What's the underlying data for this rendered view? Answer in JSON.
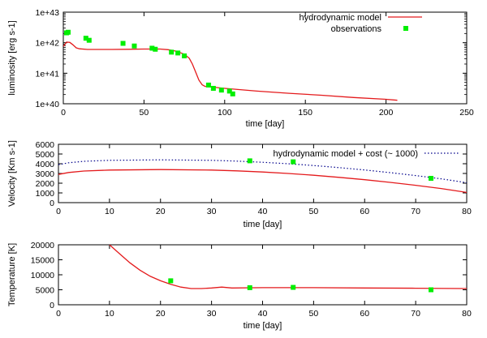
{
  "colors": {
    "model": "#e41a1c",
    "observations": "#00ee00",
    "dotted": "#00008b"
  },
  "chart_data": [
    {
      "type": "line",
      "ylog": true,
      "xlabel": "time [day]",
      "ylabel": "luminosity [erg s-1]",
      "xlim": [
        0,
        250
      ],
      "ylim": [
        1e+40,
        1e+43
      ],
      "xticks": [
        0,
        50,
        100,
        150,
        200,
        250
      ],
      "yticks": [
        1e+40,
        1e+41,
        1e+42,
        1e+43
      ],
      "ytick_labels": [
        "1e+40",
        "1e+41",
        "1e+42",
        "1e+43"
      ],
      "legend": [
        "hydrodynamic model",
        "observations"
      ],
      "series": [
        {
          "name": "hydrodynamic model",
          "style": "line",
          "x": [
            0,
            2,
            4,
            6,
            8,
            10,
            15,
            20,
            30,
            40,
            50,
            60,
            65,
            70,
            75,
            78,
            80,
            82,
            84,
            86,
            87,
            88,
            90,
            95,
            100,
            120,
            140,
            160,
            180,
            200,
            207
          ],
          "y": [
            7.5e+41,
            1.05e+42,
            1.02e+42,
            8.5e+41,
            6.8e+41,
            6.3e+41,
            6e+41,
            6e+41,
            6e+41,
            6.1e+41,
            6.2e+41,
            6.2e+41,
            5.9e+41,
            5.3e+41,
            4.2e+41,
            3.1e+41,
            2e+41,
            1.1e+41,
            6e+40,
            4.2e+40,
            3.9e+40,
            3.7e+40,
            3.6e+40,
            3.4e+40,
            3.2e+40,
            2.6e+40,
            2.2e+40,
            1.9e+40,
            1.6e+40,
            1.4e+40,
            1.3e+40
          ]
        },
        {
          "name": "observations",
          "style": "points",
          "x": [
            2,
            3,
            14,
            16,
            37,
            44,
            55,
            57,
            67,
            71,
            75,
            90,
            93,
            98,
            103,
            105
          ],
          "y": [
            2.1e+42,
            2.2e+42,
            1.4e+42,
            1.2e+42,
            9.5e+41,
            7.8e+41,
            6.6e+41,
            6.1e+41,
            4.9e+41,
            4.6e+41,
            3.7e+41,
            4.1e+40,
            3.2e+40,
            2.8e+40,
            2.6e+40,
            2.1e+40
          ]
        }
      ]
    },
    {
      "type": "line",
      "xlabel": "time [day]",
      "ylabel": "Velocity [Km s-1]",
      "xlim": [
        0,
        80
      ],
      "ylim": [
        0,
        6000
      ],
      "xticks": [
        0,
        10,
        20,
        30,
        40,
        50,
        60,
        70,
        80
      ],
      "yticks": [
        0,
        1000,
        2000,
        3000,
        4000,
        5000,
        6000
      ],
      "legend": [
        "hydrodynamic model + cost (~ 1000)"
      ],
      "series": [
        {
          "name": "hydrodynamic model",
          "style": "line",
          "x": [
            0,
            2,
            5,
            10,
            20,
            30,
            35,
            40,
            45,
            50,
            55,
            60,
            65,
            70,
            75,
            80
          ],
          "y": [
            2900,
            3100,
            3250,
            3350,
            3400,
            3350,
            3270,
            3150,
            3000,
            2820,
            2600,
            2360,
            2080,
            1780,
            1450,
            1050
          ]
        },
        {
          "name": "hydrodynamic model + cost (~ 1000)",
          "style": "dotted",
          "x": [
            0,
            2,
            5,
            10,
            20,
            30,
            35,
            40,
            45,
            50,
            55,
            60,
            65,
            70,
            75,
            80
          ],
          "y": [
            3900,
            4100,
            4250,
            4350,
            4400,
            4350,
            4270,
            4150,
            4000,
            3820,
            3600,
            3360,
            3080,
            2780,
            2450,
            2050
          ]
        },
        {
          "name": "observations",
          "style": "points",
          "x": [
            37.5,
            46,
            73
          ],
          "y": [
            4300,
            4200,
            2500
          ]
        }
      ]
    },
    {
      "type": "line",
      "xlabel": "time [day]",
      "ylabel": "Temperature [K]",
      "xlim": [
        0,
        80
      ],
      "ylim": [
        0,
        20000
      ],
      "xticks": [
        0,
        10,
        20,
        30,
        40,
        50,
        60,
        70,
        80
      ],
      "yticks": [
        0,
        5000,
        10000,
        15000,
        20000
      ],
      "series": [
        {
          "name": "hydrodynamic model",
          "style": "line",
          "x": [
            10,
            12,
            14,
            16,
            18,
            20,
            22,
            24,
            26,
            28,
            30,
            32,
            34,
            40,
            50,
            60,
            70,
            80
          ],
          "y": [
            20000,
            17000,
            14000,
            11500,
            9500,
            8000,
            6800,
            5900,
            5400,
            5400,
            5600,
            5900,
            5600,
            5700,
            5700,
            5600,
            5500,
            5400
          ]
        },
        {
          "name": "observations",
          "style": "points",
          "x": [
            22,
            37.5,
            46,
            73
          ],
          "y": [
            8000,
            5700,
            5800,
            5000
          ]
        }
      ]
    }
  ]
}
